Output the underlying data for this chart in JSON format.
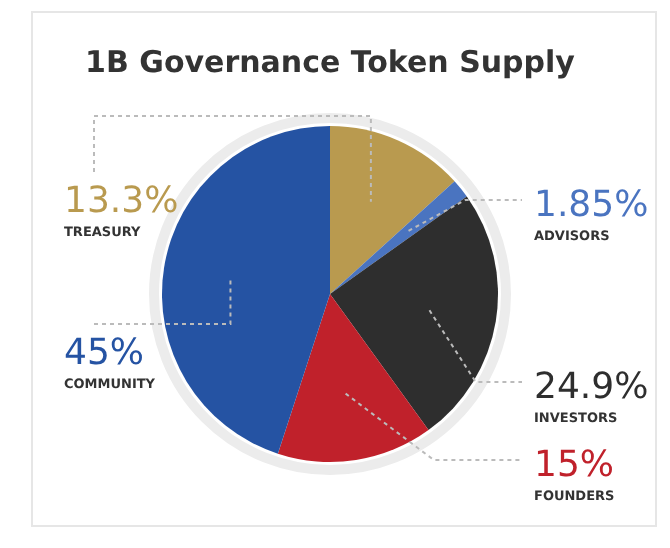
{
  "chart_data": {
    "type": "pie",
    "title": "1B Governance Token Supply",
    "categories": [
      "TREASURY",
      "ADVISORS",
      "INVESTORS",
      "FOUNDERS",
      "COMMUNITY"
    ],
    "values": [
      13.3,
      1.85,
      24.9,
      15,
      45
    ],
    "value_labels": [
      "13.3%",
      "1.85%",
      "24.9%",
      "15%",
      "45%"
    ],
    "colors": [
      "#b99a4f",
      "#4a74c0",
      "#2e2e2e",
      "#c0212b",
      "#2553a3"
    ]
  }
}
